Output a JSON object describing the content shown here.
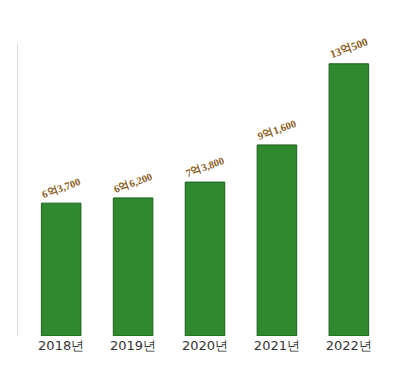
{
  "chart_data": {
    "type": "bar",
    "categories": [
      "2018년",
      "2019년",
      "2020년",
      "2021년",
      "2022년"
    ],
    "values": [
      63700,
      66200,
      73800,
      91600,
      130500
    ],
    "value_labels": [
      "6억3,700",
      "6억6,200",
      "7억3,800",
      "9억1,600",
      "13억500"
    ],
    "color": "#2f8a2f",
    "ylim": [
      0,
      140000
    ],
    "data_labels": true,
    "tick_labels": "x",
    "grid": false
  }
}
